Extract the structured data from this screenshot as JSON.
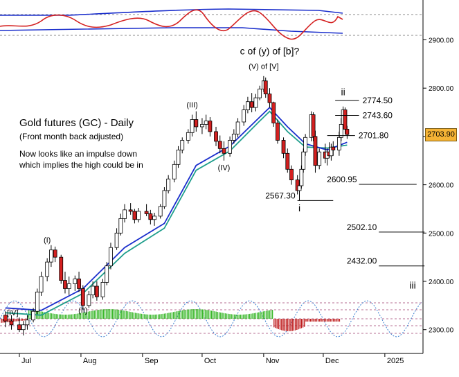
{
  "chart_data": {
    "type": "candlestick",
    "title": "Gold futures (GC) - Daily",
    "subtitle": "(Front month back adjusted)",
    "commentary": [
      "Now looks like an impulse down",
      "which implies the high could be in"
    ],
    "x_tick_labels": [
      "Jul",
      "Aug",
      "Sep",
      "Oct",
      "Nov",
      "Dec",
      "2025"
    ],
    "y_ticks": [
      2300,
      2400,
      2500,
      2600,
      2700,
      2800,
      2900
    ],
    "y_tick_labels": [
      "2300.00",
      "2400.00",
      "2500.00",
      "2600.00",
      "2700.00",
      "2800.00",
      "2900.00"
    ],
    "ylim": [
      2280,
      2960
    ],
    "current_price": "2703.90",
    "series": [
      {
        "name": "Gold futures (GC)",
        "ohlc": [
          [
            "2024-06-24",
            2330,
            2338,
            2305,
            2318
          ],
          [
            "2024-06-27",
            2318,
            2330,
            2300,
            2310
          ],
          [
            "2024-07-01",
            2310,
            2325,
            2295,
            2300
          ],
          [
            "2024-07-03",
            2300,
            2318,
            2288,
            2310
          ],
          [
            "2024-07-05",
            2310,
            2330,
            2300,
            2320
          ],
          [
            "2024-07-08",
            2320,
            2345,
            2315,
            2338
          ],
          [
            "2024-07-10",
            2338,
            2385,
            2332,
            2378
          ],
          [
            "2024-07-12",
            2378,
            2420,
            2370,
            2410
          ],
          [
            "2024-07-15",
            2410,
            2448,
            2400,
            2440
          ],
          [
            "2024-07-17",
            2440,
            2475,
            2430,
            2465
          ],
          [
            "2024-07-19",
            2465,
            2472,
            2440,
            2450
          ],
          [
            "2024-07-22",
            2450,
            2455,
            2395,
            2402
          ],
          [
            "2024-07-24",
            2402,
            2420,
            2375,
            2385
          ],
          [
            "2024-07-26",
            2385,
            2410,
            2372,
            2395
          ],
          [
            "2024-07-29",
            2395,
            2412,
            2380,
            2405
          ],
          [
            "2024-07-31",
            2405,
            2420,
            2378,
            2385
          ],
          [
            "2024-08-02",
            2385,
            2392,
            2342,
            2350
          ],
          [
            "2024-08-05",
            2350,
            2380,
            2345,
            2372
          ],
          [
            "2024-08-07",
            2372,
            2400,
            2365,
            2390
          ],
          [
            "2024-08-09",
            2390,
            2400,
            2360,
            2368
          ],
          [
            "2024-08-12",
            2368,
            2405,
            2362,
            2398
          ],
          [
            "2024-08-14",
            2398,
            2440,
            2392,
            2432
          ],
          [
            "2024-08-16",
            2432,
            2480,
            2425,
            2470
          ],
          [
            "2024-08-19",
            2470,
            2510,
            2465,
            2500
          ],
          [
            "2024-08-21",
            2500,
            2540,
            2495,
            2530
          ],
          [
            "2024-08-23",
            2530,
            2560,
            2522,
            2548
          ],
          [
            "2024-08-26",
            2548,
            2562,
            2538,
            2545
          ],
          [
            "2024-08-28",
            2545,
            2550,
            2520,
            2528
          ],
          [
            "2024-08-30",
            2528,
            2552,
            2522,
            2545
          ],
          [
            "2024-09-03",
            2545,
            2560,
            2535,
            2540
          ],
          [
            "2024-09-05",
            2540,
            2548,
            2518,
            2528
          ],
          [
            "2024-09-07",
            2528,
            2542,
            2515,
            2535
          ],
          [
            "2024-09-10",
            2535,
            2560,
            2530,
            2555
          ],
          [
            "2024-09-12",
            2555,
            2595,
            2550,
            2588
          ],
          [
            "2024-09-14",
            2588,
            2620,
            2582,
            2612
          ],
          [
            "2024-09-17",
            2612,
            2650,
            2605,
            2642
          ],
          [
            "2024-09-19",
            2642,
            2680,
            2635,
            2672
          ],
          [
            "2024-09-21",
            2672,
            2698,
            2665,
            2692
          ],
          [
            "2024-09-24",
            2692,
            2715,
            2685,
            2708
          ],
          [
            "2024-09-26",
            2708,
            2745,
            2700,
            2735
          ],
          [
            "2024-09-28",
            2735,
            2752,
            2710,
            2720
          ],
          [
            "2024-10-01",
            2720,
            2738,
            2705,
            2725
          ],
          [
            "2024-10-03",
            2725,
            2745,
            2715,
            2732
          ],
          [
            "2024-10-05",
            2732,
            2740,
            2700,
            2710
          ],
          [
            "2024-10-08",
            2710,
            2720,
            2680,
            2690
          ],
          [
            "2024-10-10",
            2690,
            2702,
            2665,
            2675
          ],
          [
            "2024-10-12",
            2675,
            2690,
            2650,
            2665
          ],
          [
            "2024-10-15",
            2665,
            2700,
            2658,
            2692
          ],
          [
            "2024-10-17",
            2692,
            2715,
            2685,
            2705
          ],
          [
            "2024-10-19",
            2705,
            2738,
            2698,
            2730
          ],
          [
            "2024-10-22",
            2730,
            2765,
            2722,
            2755
          ],
          [
            "2024-10-24",
            2755,
            2782,
            2748,
            2772
          ],
          [
            "2024-10-26",
            2772,
            2790,
            2750,
            2760
          ],
          [
            "2024-10-28",
            2760,
            2788,
            2752,
            2780
          ],
          [
            "2024-10-30",
            2780,
            2805,
            2775,
            2798
          ],
          [
            "2024-11-01",
            2798,
            2825,
            2792,
            2815
          ],
          [
            "2024-11-02",
            2815,
            2822,
            2780,
            2788
          ],
          [
            "2024-11-04",
            2788,
            2800,
            2760,
            2770
          ],
          [
            "2024-11-06",
            2770,
            2772,
            2720,
            2728
          ],
          [
            "2024-11-08",
            2728,
            2735,
            2685,
            2692
          ],
          [
            "2024-11-11",
            2692,
            2698,
            2655,
            2665
          ],
          [
            "2024-11-13",
            2665,
            2675,
            2625,
            2632
          ],
          [
            "2024-11-15",
            2632,
            2640,
            2600,
            2610
          ],
          [
            "2024-11-18",
            2610,
            2620,
            2580,
            2588
          ],
          [
            "2024-11-19",
            2588,
            2605,
            2567,
            2598
          ],
          [
            "2024-11-20",
            2598,
            2640,
            2592,
            2632
          ],
          [
            "2024-11-21",
            2632,
            2675,
            2625,
            2668
          ],
          [
            "2024-11-22",
            2668,
            2705,
            2660,
            2698
          ],
          [
            "2024-11-25",
            2698,
            2752,
            2690,
            2745
          ],
          [
            "2024-11-26",
            2745,
            2750,
            2690,
            2700
          ],
          [
            "2024-11-27",
            2700,
            2712,
            2625,
            2640
          ],
          [
            "2024-11-29",
            2640,
            2675,
            2632,
            2668
          ],
          [
            "2024-12-02",
            2668,
            2685,
            2645,
            2655
          ],
          [
            "2024-12-03",
            2655,
            2675,
            2640,
            2668
          ],
          [
            "2024-12-04",
            2668,
            2688,
            2655,
            2660
          ],
          [
            "2024-12-05",
            2660,
            2685,
            2650,
            2678
          ],
          [
            "2024-12-06",
            2678,
            2690,
            2660,
            2672
          ],
          [
            "2024-12-09",
            2672,
            2710,
            2660,
            2698
          ],
          [
            "2024-12-10",
            2698,
            2738,
            2690,
            2725
          ],
          [
            "2024-12-11",
            2725,
            2762,
            2715,
            2755
          ],
          [
            "2024-12-12",
            2755,
            2760,
            2705,
            2715
          ],
          [
            "2024-12-13",
            2715,
            2722,
            2695,
            2704
          ]
        ]
      },
      {
        "name": "",
        "values": [
          [
            "2024-06-24",
            2345
          ],
          [
            "2024-07-12",
            2340
          ],
          [
            "2024-08-02",
            2385
          ],
          [
            "2024-08-23",
            2470
          ],
          [
            "2024-09-12",
            2520
          ],
          [
            "2024-09-28",
            2640
          ],
          [
            "2024-10-15",
            2680
          ],
          [
            "2024-10-30",
            2740
          ],
          [
            "2024-11-04",
            2760
          ],
          [
            "2024-11-13",
            2720
          ],
          [
            "2024-11-22",
            2685
          ],
          [
            "2024-12-03",
            2672
          ],
          [
            "2024-12-13",
            2688
          ]
        ]
      },
      {
        "name": "",
        "values": [
          [
            "2024-06-24",
            2335
          ],
          [
            "2024-07-12",
            2330
          ],
          [
            "2024-08-02",
            2375
          ],
          [
            "2024-08-23",
            2458
          ],
          [
            "2024-09-12",
            2510
          ],
          [
            "2024-09-28",
            2630
          ],
          [
            "2024-10-15",
            2670
          ],
          [
            "2024-10-30",
            2732
          ],
          [
            "2024-11-04",
            2752
          ],
          [
            "2024-11-13",
            2710
          ],
          [
            "2024-11-22",
            2678
          ],
          [
            "2024-12-03",
            2676
          ],
          [
            "2024-12-13",
            2682
          ]
        ]
      }
    ],
    "wave_labels": [
      {
        "text": "(I)",
        "x": "2024-07-15",
        "y": 2480
      },
      {
        "text": "(II)",
        "x": "2024-08-02",
        "y": 2335
      },
      {
        "text": "(III)",
        "x": "2024-09-26",
        "y": 2760
      },
      {
        "text": "(IV)",
        "x": "2024-10-12",
        "y": 2630
      },
      {
        "text": "(V) of [V]",
        "x": "2024-11-01",
        "y": 2840
      },
      {
        "text": "c of (y) of [b]?",
        "x": "2024-11-04",
        "y": 2870
      },
      {
        "text": "i",
        "x": "2024-11-19",
        "y": 2545
      },
      {
        "text": "ii",
        "x": "2024-12-11",
        "y": 2785
      },
      {
        "text": "iii",
        "x": "2025-01-15",
        "y": 2385
      }
    ],
    "levels": [
      {
        "label": "2774.50",
        "value": 2774.5,
        "from": "2024-12-07",
        "to": "2024-12-19"
      },
      {
        "label": "2743.60",
        "value": 2743.6,
        "from": "2024-12-07",
        "to": "2024-12-19"
      },
      {
        "label": "2701.80",
        "value": 2701.8,
        "from": "2024-12-03",
        "to": "2024-12-17"
      },
      {
        "label": "2600.95",
        "value": 2600.95,
        "from": "2024-12-19",
        "to": "2025-01-17"
      },
      {
        "label": "2567.30",
        "value": 2567.3,
        "from": "2024-11-18",
        "to": "2024-12-06"
      },
      {
        "label": "2502.10",
        "value": 2502.1,
        "from": "2024-12-29",
        "to": "2025-01-21"
      },
      {
        "label": "2432.00",
        "value": 2432,
        "from": "2024-12-29",
        "to": "2025-01-21"
      }
    ],
    "lower_indicator_label": "[IV]",
    "colors": {
      "up": "#ffffff",
      "down": "#d42020",
      "ma_fast": "#1a2ecc",
      "ma_slow": "#1f9e8c",
      "osc_top": "#d42020",
      "osc_band": "#1a2ecc",
      "cycle": "#3a7fd0",
      "badge": "#f5b335"
    }
  }
}
